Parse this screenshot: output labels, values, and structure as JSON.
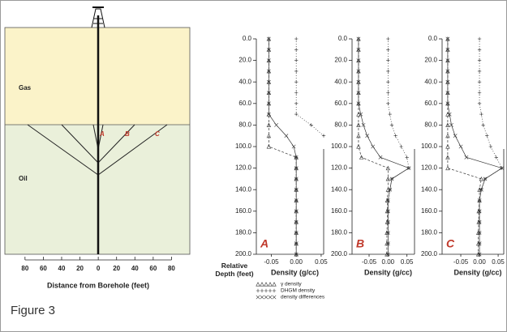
{
  "figure_label": "Figure 3",
  "cross_section": {
    "layers": [
      "Gas",
      "Oil"
    ],
    "wells": [
      "A",
      "B",
      "C"
    ],
    "xlim": [
      -102,
      100
    ],
    "xticks": [
      {
        "value": -80,
        "label": "80"
      },
      {
        "value": -60,
        "label": "60"
      },
      {
        "value": -40,
        "label": "40"
      },
      {
        "value": -20,
        "label": "20"
      },
      0,
      20,
      40,
      60,
      80
    ],
    "xlabel": "Distance from Borehole (feet)"
  },
  "chart_data": [
    {
      "type": "line",
      "label": "A",
      "ylabel": "Relative Depth (feet)",
      "xlabel": "Density (g/cc)",
      "y": [
        0,
        10,
        20,
        30,
        40,
        50,
        60,
        70,
        80,
        90,
        100,
        110,
        120,
        130,
        140,
        150,
        160,
        170,
        180,
        190,
        200
      ],
      "ylim": [
        0,
        200
      ],
      "y_inverted": true,
      "yticks": [
        {
          "value": 0,
          "label": "0.0"
        },
        {
          "value": 20,
          "label": "20.0"
        },
        {
          "value": 40,
          "label": "40.0"
        },
        {
          "value": 60,
          "label": "60.0"
        },
        {
          "value": 80,
          "label": "80.0"
        },
        {
          "value": 100,
          "label": "100.0"
        },
        {
          "value": 120,
          "label": "120.0"
        },
        {
          "value": 140,
          "label": "140.0"
        },
        {
          "value": 160,
          "label": "160.0"
        },
        {
          "value": 180,
          "label": "180.0"
        },
        {
          "value": 200,
          "label": "200.0"
        }
      ],
      "xlim": [
        -0.08,
        0.055
      ],
      "xticks": [
        -0.05,
        {
          "value": 0,
          "label": "0.00"
        },
        0.05
      ],
      "legend": true,
      "series": [
        {
          "name": "γ density",
          "marker": "triangle",
          "dash": "3,2",
          "color": "#333333",
          "values": [
            -0.055,
            -0.055,
            -0.055,
            -0.055,
            -0.055,
            -0.055,
            -0.055,
            -0.055,
            -0.055,
            -0.055,
            -0.055,
            0,
            0,
            0,
            0,
            0,
            0,
            0,
            0,
            0,
            0
          ]
        },
        {
          "name": "DHGM density",
          "marker": "plus",
          "dash": "1,2",
          "color": "#333333",
          "values": [
            0,
            0,
            0,
            0,
            0,
            0,
            0,
            0,
            0.03,
            0.055,
            null,
            0,
            0,
            0,
            0,
            0,
            0,
            0,
            0,
            0,
            0
          ]
        },
        {
          "name": "density differences",
          "marker": "x",
          "dash": "none",
          "color": "#333333",
          "values": [
            -0.055,
            -0.055,
            -0.055,
            -0.055,
            -0.055,
            -0.055,
            -0.055,
            -0.055,
            -0.04,
            -0.02,
            -0.005,
            0,
            0,
            0,
            0,
            0,
            0,
            0,
            0,
            0,
            0
          ]
        }
      ]
    },
    {
      "type": "line",
      "label": "B",
      "xlabel": "Density (g/cc)",
      "y": [
        0,
        10,
        20,
        30,
        40,
        50,
        60,
        70,
        80,
        90,
        100,
        110,
        120,
        130,
        140,
        150,
        160,
        170,
        180,
        190,
        200
      ],
      "ylim": [
        0,
        200
      ],
      "y_inverted": true,
      "yticks": [
        {
          "value": 0,
          "label": "0.0"
        },
        {
          "value": 20,
          "label": "20.0"
        },
        {
          "value": 40,
          "label": "40.0"
        },
        {
          "value": 60,
          "label": "60.0"
        },
        {
          "value": 80,
          "label": "80.0"
        },
        {
          "value": 100,
          "label": "100.0"
        },
        {
          "value": 120,
          "label": "120.0"
        },
        {
          "value": 140,
          "label": "140.0"
        },
        {
          "value": 160,
          "label": "160.0"
        },
        {
          "value": 180,
          "label": "180.0"
        },
        {
          "value": 200,
          "label": "200.0"
        }
      ],
      "xlim": [
        -0.095,
        0.07
      ],
      "xticks": [
        -0.05,
        {
          "value": 0,
          "label": "0.00"
        },
        0.05
      ],
      "legend": false,
      "series": [
        {
          "marker": "triangle",
          "dash": "3,2",
          "color": "#333333",
          "values": [
            -0.078,
            -0.078,
            -0.078,
            -0.078,
            -0.078,
            -0.078,
            -0.078,
            -0.078,
            -0.078,
            -0.078,
            -0.078,
            -0.07,
            0,
            0,
            0,
            -0.002,
            -0.002,
            -0.002,
            -0.003,
            -0.003,
            -0.003
          ]
        },
        {
          "marker": "plus",
          "dash": "1,2",
          "color": "#333333",
          "values": [
            0,
            0,
            0,
            0,
            0,
            0,
            0,
            0.005,
            0.01,
            0.02,
            0.035,
            0.05,
            0.055,
            0.01,
            0.005,
            0,
            0,
            0,
            0,
            0,
            0
          ]
        },
        {
          "marker": "x",
          "dash": "none",
          "color": "#333333",
          "values": [
            -0.078,
            -0.078,
            -0.078,
            -0.078,
            -0.078,
            -0.078,
            -0.078,
            -0.072,
            -0.065,
            -0.055,
            -0.04,
            -0.02,
            0.055,
            0.01,
            0.005,
            0,
            0,
            0,
            0,
            0,
            0
          ]
        }
      ]
    },
    {
      "type": "line",
      "label": "C",
      "xlabel": "Density (g/cc)",
      "y": [
        0,
        10,
        20,
        30,
        40,
        50,
        60,
        70,
        80,
        90,
        100,
        110,
        120,
        130,
        140,
        150,
        160,
        170,
        180,
        190,
        200
      ],
      "ylim": [
        0,
        200
      ],
      "y_inverted": true,
      "yticks": [
        {
          "value": 0,
          "label": "0.0"
        },
        {
          "value": 20,
          "label": "20.0"
        },
        {
          "value": 40,
          "label": "40.0"
        },
        {
          "value": 60,
          "label": "60.0"
        },
        {
          "value": 80,
          "label": "80.0"
        },
        {
          "value": 100,
          "label": "100.0"
        },
        {
          "value": 120,
          "label": "120.0"
        },
        {
          "value": 140,
          "label": "140.0"
        },
        {
          "value": 160,
          "label": "160.0"
        },
        {
          "value": 180,
          "label": "180.0"
        },
        {
          "value": 200,
          "label": "200.0"
        }
      ],
      "xlim": [
        -0.1,
        0.065
      ],
      "xticks": [
        -0.05,
        {
          "value": 0,
          "label": "0.00"
        },
        0.05
      ],
      "legend": false,
      "series": [
        {
          "marker": "triangle",
          "dash": "3,2",
          "color": "#333333",
          "values": [
            -0.085,
            -0.085,
            -0.085,
            -0.085,
            -0.085,
            -0.085,
            -0.085,
            -0.085,
            -0.085,
            -0.085,
            -0.085,
            -0.085,
            -0.085,
            0.005,
            0,
            0,
            -0.002,
            -0.002,
            -0.003,
            -0.003,
            -0.003
          ]
        },
        {
          "marker": "plus",
          "dash": "1,2",
          "color": "#333333",
          "values": [
            0,
            0,
            0,
            0,
            0,
            0,
            0,
            0.005,
            0.01,
            0.02,
            0.03,
            0.045,
            0.06,
            0.015,
            0.005,
            0,
            0,
            0,
            0,
            0,
            0
          ]
        },
        {
          "marker": "x",
          "dash": "none",
          "color": "#333333",
          "values": [
            -0.085,
            -0.085,
            -0.085,
            -0.085,
            -0.085,
            -0.085,
            -0.085,
            -0.08,
            -0.075,
            -0.065,
            -0.05,
            -0.035,
            0.06,
            0.015,
            0.005,
            0,
            0,
            0,
            0,
            0,
            0
          ]
        }
      ]
    }
  ]
}
